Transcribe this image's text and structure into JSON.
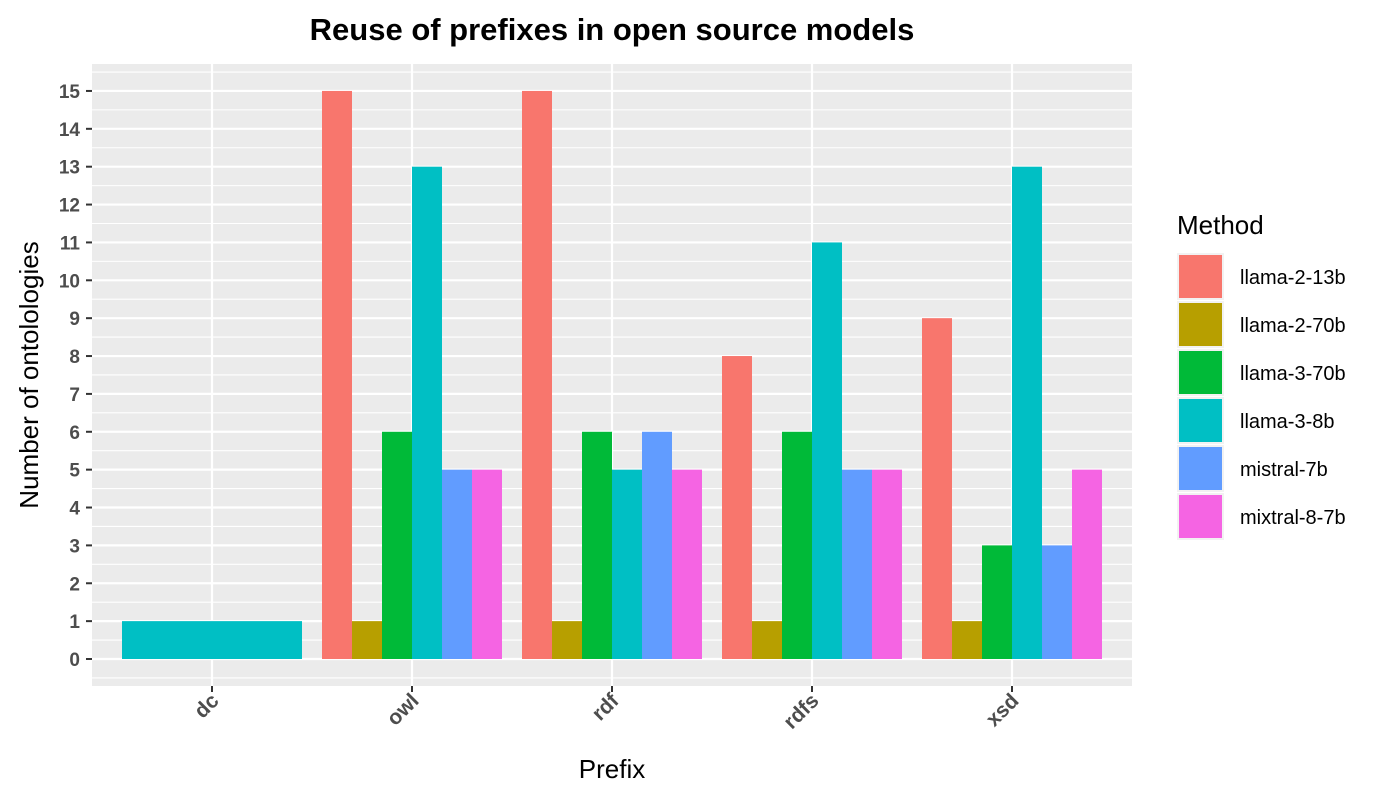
{
  "chart_data": {
    "type": "bar",
    "title": "Reuse of prefixes in open source models",
    "xlabel": "Prefix",
    "ylabel": "Number of ontolologies",
    "categories": [
      "dc",
      "owl",
      "rdf",
      "rdfs",
      "xsd"
    ],
    "ylim": [
      0,
      15
    ],
    "yticks": [
      0,
      1,
      2,
      3,
      4,
      5,
      6,
      7,
      8,
      9,
      10,
      11,
      12,
      13,
      14,
      15
    ],
    "legend_title": "Method",
    "legend_position": "right",
    "grid": true,
    "bar_mode": "dodge, dropped groups collapse (preserve total)",
    "series": [
      {
        "name": "llama-2-13b",
        "color": "#F8766D",
        "values": [
          null,
          15,
          15,
          8,
          9
        ]
      },
      {
        "name": "llama-2-70b",
        "color": "#B79F00",
        "values": [
          null,
          1,
          1,
          1,
          1
        ]
      },
      {
        "name": "llama-3-70b",
        "color": "#00BA38",
        "values": [
          null,
          6,
          6,
          6,
          3
        ]
      },
      {
        "name": "llama-3-8b",
        "color": "#00BFC4",
        "values": [
          1,
          13,
          5,
          11,
          13
        ]
      },
      {
        "name": "mistral-7b",
        "color": "#619CFF",
        "values": [
          null,
          5,
          6,
          5,
          3
        ]
      },
      {
        "name": "mixtral-8-7b",
        "color": "#F564E3",
        "values": [
          null,
          5,
          5,
          5,
          5
        ]
      }
    ]
  }
}
